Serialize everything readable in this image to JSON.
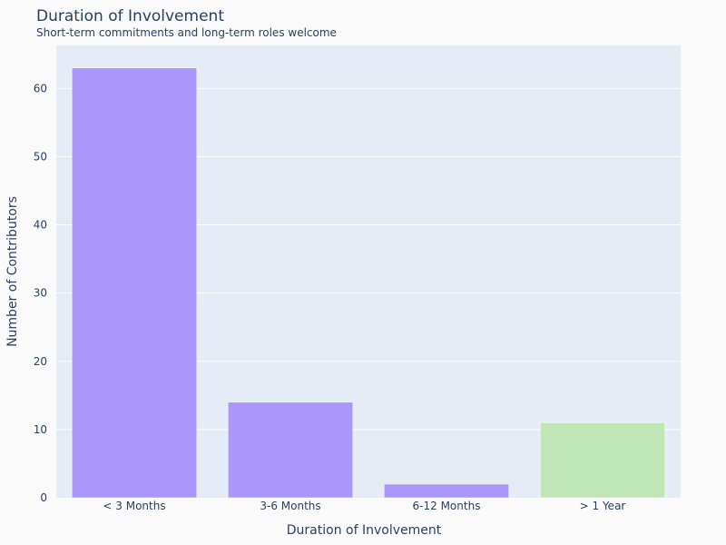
{
  "chart_data": {
    "type": "bar",
    "title": "Duration of Involvement",
    "subtitle": "Short-term commitments and long-term roles welcome",
    "xlabel": "Duration of Involvement",
    "ylabel": "Number of Contributors",
    "categories": [
      "< 3 Months",
      "3-6 Months",
      "6-12 Months",
      "> 1 Year"
    ],
    "values": [
      63,
      14,
      2,
      11
    ],
    "bar_colors": [
      "#ab96fc",
      "#ab96fc",
      "#ab96fc",
      "#c0e6b5"
    ],
    "ylim": [
      0,
      66.3
    ],
    "yticks": [
      0,
      10,
      20,
      30,
      40,
      50,
      60
    ],
    "grid": true,
    "legend": "none",
    "plot_background": "#e5ecf6",
    "page_background": "#fafafa"
  }
}
